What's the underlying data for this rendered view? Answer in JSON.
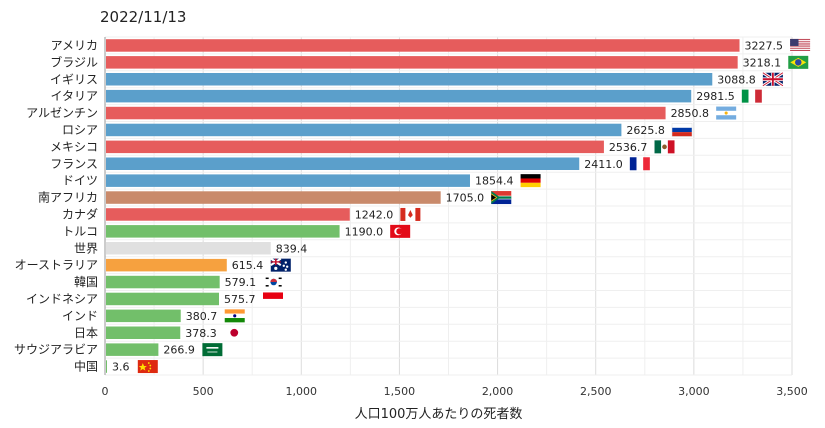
{
  "date": "2022/11/13",
  "chart_data": {
    "type": "bar",
    "orientation": "horizontal",
    "title": "",
    "xlabel": "人口100万人あたりの死者数",
    "ylabel": "",
    "xlim": [
      0,
      3500
    ],
    "xticks": [
      0,
      500,
      1000,
      1500,
      2000,
      2500,
      3000,
      3500
    ],
    "xtick_labels": [
      "0",
      "500",
      "1,000",
      "1,500",
      "2,000",
      "2,500",
      "3,000",
      "3,500"
    ],
    "grid": true,
    "colors": {
      "red": "#e65c5c",
      "blue": "#5b9fcb",
      "brown": "#c98a6b",
      "green": "#72bf6a",
      "gray": "#e0e0e0",
      "orange": "#f6a13f"
    },
    "bars": [
      {
        "category": "アメリカ",
        "value": 3227.5,
        "label": "3227.5",
        "color": "red",
        "flag": "us-flag"
      },
      {
        "category": "ブラジル",
        "value": 3218.1,
        "label": "3218.1",
        "color": "red",
        "flag": "br-flag"
      },
      {
        "category": "イギリス",
        "value": 3088.8,
        "label": "3088.8",
        "color": "blue",
        "flag": "gb-flag"
      },
      {
        "category": "イタリア",
        "value": 2981.5,
        "label": "2981.5",
        "color": "blue",
        "flag": "it-flag"
      },
      {
        "category": "アルゼンチン",
        "value": 2850.8,
        "label": "2850.8",
        "color": "red",
        "flag": "ar-flag"
      },
      {
        "category": "ロシア",
        "value": 2625.8,
        "label": "2625.8",
        "color": "blue",
        "flag": "ru-flag"
      },
      {
        "category": "メキシコ",
        "value": 2536.7,
        "label": "2536.7",
        "color": "red",
        "flag": "mx-flag"
      },
      {
        "category": "フランス",
        "value": 2411.0,
        "label": "2411.0",
        "color": "blue",
        "flag": "fr-flag"
      },
      {
        "category": "ドイツ",
        "value": 1854.4,
        "label": "1854.4",
        "color": "blue",
        "flag": "de-flag"
      },
      {
        "category": "南アフリカ",
        "value": 1705.0,
        "label": "1705.0",
        "color": "brown",
        "flag": "za-flag"
      },
      {
        "category": "カナダ",
        "value": 1242.0,
        "label": "1242.0",
        "color": "red",
        "flag": "ca-flag"
      },
      {
        "category": "トルコ",
        "value": 1190.0,
        "label": "1190.0",
        "color": "green",
        "flag": "tr-flag"
      },
      {
        "category": "世界",
        "value": 839.4,
        "label": "839.4",
        "color": "gray",
        "flag": ""
      },
      {
        "category": "オーストラリア",
        "value": 615.4,
        "label": "615.4",
        "color": "orange",
        "flag": "au-flag"
      },
      {
        "category": "韓国",
        "value": 579.1,
        "label": "579.1",
        "color": "green",
        "flag": "kr-flag"
      },
      {
        "category": "インドネシア",
        "value": 575.7,
        "label": "575.7",
        "color": "green",
        "flag": "id-flag"
      },
      {
        "category": "インド",
        "value": 380.7,
        "label": "380.7",
        "color": "green",
        "flag": "in-flag"
      },
      {
        "category": "日本",
        "value": 378.3,
        "label": "378.3",
        "color": "green",
        "flag": "jp-flag"
      },
      {
        "category": "サウジアラビア",
        "value": 266.9,
        "label": "266.9",
        "color": "green",
        "flag": "sa-flag"
      },
      {
        "category": "中国",
        "value": 3.6,
        "label": "3.6",
        "color": "green",
        "flag": "cn-flag"
      }
    ]
  }
}
